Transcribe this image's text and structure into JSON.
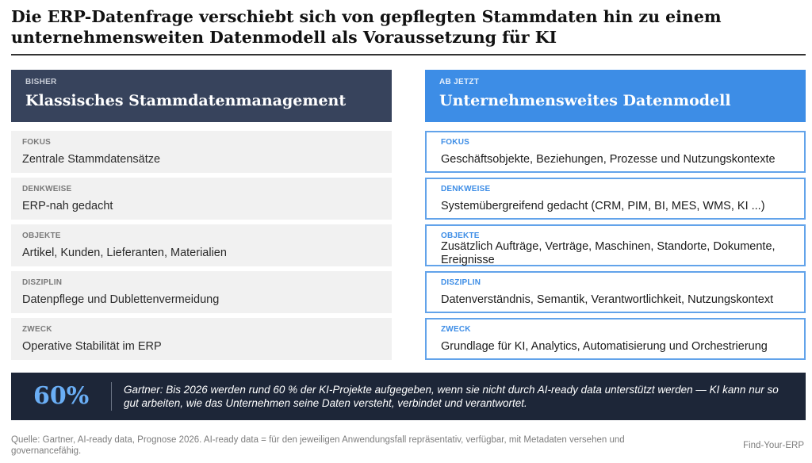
{
  "title": "Die ERP-Datenfrage verschiebt sich von gepflegten Stammdaten hin zu einem unternehmensweiten Datenmodell als Voraussetzung für KI",
  "left": {
    "kicker": "BISHER",
    "heading": "Klassisches Stammdatenmanagement",
    "color": "#37435c",
    "rows": [
      {
        "label": "FOKUS",
        "text": "Zentrale Stammdatensätze"
      },
      {
        "label": "DENKWEISE",
        "text": "ERP-nah gedacht"
      },
      {
        "label": "OBJEKTE",
        "text": "Artikel, Kunden, Lieferanten, Materialien"
      },
      {
        "label": "DISZIPLIN",
        "text": "Datenpflege und Dublettenvermeidung"
      },
      {
        "label": "ZWECK",
        "text": "Operative Stabilität im ERP"
      }
    ]
  },
  "right": {
    "kicker": "AB JETZT",
    "heading": "Unternehmensweites Datenmodell",
    "color": "#3d8de6",
    "rows": [
      {
        "label": "FOKUS",
        "text": "Geschäftsobjekte, Beziehungen, Prozesse und Nutzungskontexte"
      },
      {
        "label": "DENKWEISE",
        "text": "Systemübergreifend gedacht (CRM, PIM, BI, MES, WMS, KI ...)"
      },
      {
        "label": "OBJEKTE",
        "text": "Zusätzlich Aufträge, Verträge, Maschinen, Standorte, Dokumente, Ereignisse"
      },
      {
        "label": "DISZIPLIN",
        "text": "Datenverständnis, Semantik, Verantwortlichkeit, Nutzungskontext"
      },
      {
        "label": "ZWECK",
        "text": "Grundlage für KI, Analytics, Automatisierung und Orchestrierung"
      }
    ]
  },
  "banner": {
    "stat": "60%",
    "quote": "Gartner: Bis 2026 werden rund 60 % der KI-Projekte aufgegeben, wenn sie nicht durch AI-ready data unterstützt werden — KI kann nur so gut arbeiten, wie das Unternehmen seine Daten versteht, verbindet und verantwortet."
  },
  "footer": {
    "source": "Quelle: Gartner, AI-ready data, Prognose 2026. AI-ready data = für den jeweiligen Anwendungsfall repräsentativ, verfügbar, mit Metadaten versehen und governancefähig.",
    "brand": "Find-Your-ERP"
  }
}
